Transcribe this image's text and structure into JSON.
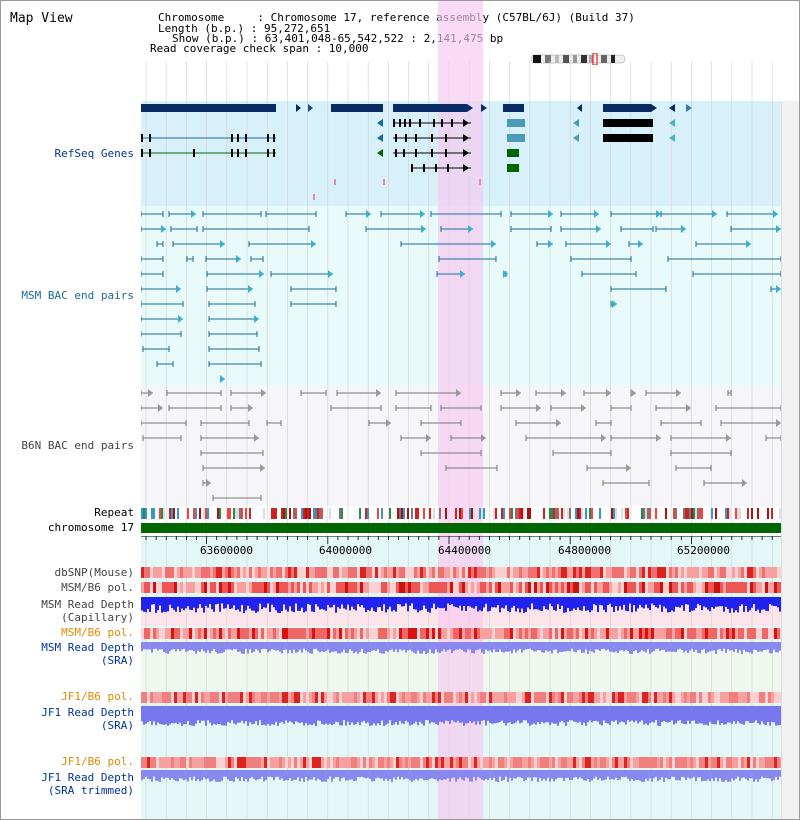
{
  "view": {
    "title": "Map View"
  },
  "header": {
    "lines": [
      "Chromosome     : Chromosome 17, reference assembly (C57BL/6J) (Build 37)",
      "Length (b.p.) : 95,272,651",
      "Show (b.p.) : 63,401,048-65,542,522 : 2,141,475 bp",
      "Read coverage check span : 10,000"
    ]
  },
  "tracks": {
    "refseq": "RefSeq Genes",
    "msm_bac": "MSM BAC end pairs",
    "b6n_bac": "B6N BAC end pairs",
    "repeat": "Repeat",
    "chromosome": "chromosome 17",
    "dbsnp": "dbSNP(Mouse)",
    "msm_b6_pol_1": "MSM/B6 pol.",
    "msm_read_depth_cap_1": "MSM Read Depth",
    "msm_read_depth_cap_2": "(Capillary)",
    "msm_b6_pol_2": "MSM/B6 pol.",
    "msm_read_depth_sra_1": "MSM Read Depth",
    "msm_read_depth_sra_2": "(SRA)",
    "jf1_b6_pol_1": "JF1/B6 pol.",
    "jf1_read_depth_sra_1": "JF1 Read Depth",
    "jf1_read_depth_sra_2": "(SRA)",
    "jf1_b6_pol_2": "JF1/B6 pol.",
    "jf1_read_depth_trim_1": "JF1 Read Depth",
    "jf1_read_depth_trim_2": "(SRA trimmed)"
  },
  "axis": {
    "ticks": [
      "63600000",
      "64000000",
      "64400000",
      "64800000",
      "65200000"
    ]
  },
  "colors": {
    "highlight": "#f8d4f0",
    "refseq_bg": "#d8f0fa",
    "bac_bg": "#e8fafa",
    "gene_dark": "#0a2a66",
    "msm_line": "#1a6a9a",
    "b6n_line": "#666666",
    "chrom_bar": "#006600",
    "depth_blue": "#2222ee",
    "depth_light": "#8888ff"
  }
}
